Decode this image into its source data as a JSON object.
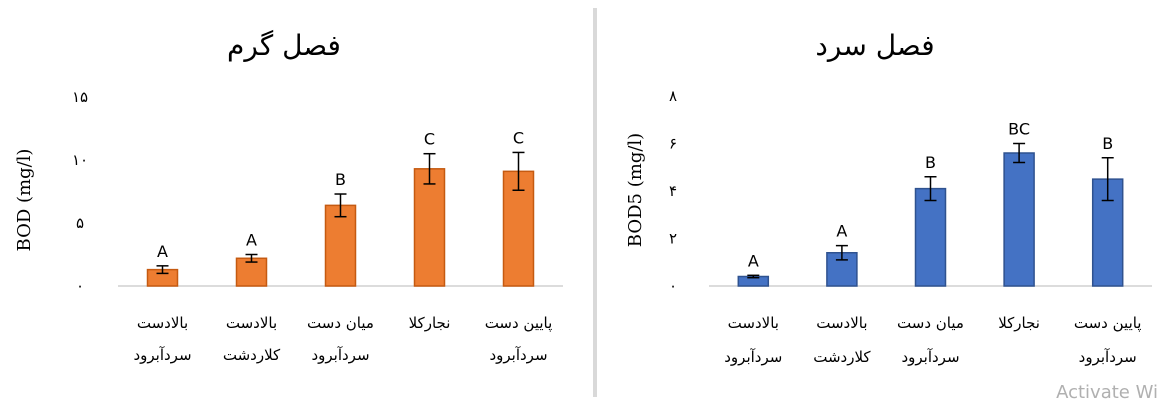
{
  "watermark": "Activate Wi",
  "chart_data": [
    {
      "type": "bar",
      "title": "فصل گرم",
      "ylabel": "BOD (mg/l)",
      "xlabel": "",
      "ylim": [
        0,
        15
      ],
      "yticks": [
        0,
        5,
        10,
        15
      ],
      "ytick_labels": [
        "۰",
        "۵",
        "۱۰",
        "۱۵"
      ],
      "grid": false,
      "color": "#ED7D31",
      "categories": [
        [
          "بالادست",
          "سردآبرود"
        ],
        [
          "بالادست",
          "کلاردشت"
        ],
        [
          "میان دست",
          "سردآبرود"
        ],
        [
          "نجارکلا"
        ],
        [
          "پایین دست",
          "سردآبرود"
        ]
      ],
      "values": [
        1.3,
        2.2,
        6.4,
        9.3,
        9.1
      ],
      "errors": [
        0.3,
        0.3,
        0.9,
        1.2,
        1.5
      ],
      "group_labels": [
        "A",
        "A",
        "B",
        "C",
        "C"
      ]
    },
    {
      "type": "bar",
      "title": "فصل سرد",
      "ylabel": "BOD5 (mg/l)",
      "xlabel": "",
      "ylim": [
        0,
        8
      ],
      "yticks": [
        0,
        2,
        4,
        6,
        8
      ],
      "ytick_labels": [
        "۰",
        "۲",
        "۴",
        "۶",
        "۸"
      ],
      "grid": false,
      "color": "#4472C4",
      "categories": [
        [
          "بالادست",
          "سردآبرود"
        ],
        [
          "بالادست",
          "کلاردشت"
        ],
        [
          "میان دست",
          "سردآبرود"
        ],
        [
          "نجارکلا"
        ],
        [
          "پایین دست",
          "سردآبرود"
        ]
      ],
      "values": [
        0.4,
        1.4,
        4.1,
        5.6,
        4.5
      ],
      "errors": [
        0.05,
        0.3,
        0.5,
        0.4,
        0.9
      ],
      "group_labels": [
        "A",
        "A",
        "B",
        "BC",
        "B"
      ]
    }
  ]
}
